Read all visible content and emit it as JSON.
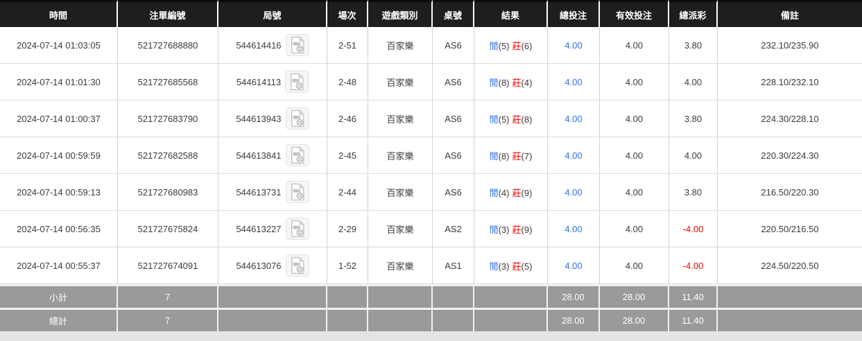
{
  "colors": {
    "link_blue": "#2d6fef",
    "negative_red": "#ee0000",
    "banker_red": "#e01322",
    "player_blue": "#2d6fef",
    "header_bg": "#1e1e1e",
    "footer_bg": "#9a9a9a"
  },
  "table": {
    "columns": [
      {
        "key": "time",
        "label": "時間"
      },
      {
        "key": "bet_no",
        "label": "注單編號"
      },
      {
        "key": "round_no",
        "label": "局號"
      },
      {
        "key": "session",
        "label": "場次"
      },
      {
        "key": "game",
        "label": "遊戲類別"
      },
      {
        "key": "table_id",
        "label": "桌號"
      },
      {
        "key": "result",
        "label": "結果"
      },
      {
        "key": "total",
        "label": "總投注"
      },
      {
        "key": "valid",
        "label": "有效投注"
      },
      {
        "key": "payout",
        "label": "總派彩"
      },
      {
        "key": "remark",
        "label": "備註"
      }
    ],
    "video_icon_name": "video-file-icon",
    "rows": [
      {
        "time": "2024-07-14 01:03:05",
        "bet_no": "521727688880",
        "round_no": "544614416",
        "session": "2-51",
        "game": "百家樂",
        "table_id": "AS6",
        "result": {
          "player_label": "閒",
          "player_score": "(5)",
          "banker_label": "莊",
          "banker_score": "(6)"
        },
        "total": "4.00",
        "valid": "4.00",
        "payout": "3.80",
        "remark": "232.10/235.90"
      },
      {
        "time": "2024-07-14 01:01:30",
        "bet_no": "521727685568",
        "round_no": "544614113",
        "session": "2-48",
        "game": "百家樂",
        "table_id": "AS6",
        "result": {
          "player_label": "閒",
          "player_score": "(8)",
          "banker_label": "莊",
          "banker_score": "(4)"
        },
        "total": "4.00",
        "valid": "4.00",
        "payout": "4.00",
        "remark": "228.10/232.10"
      },
      {
        "time": "2024-07-14 01:00:37",
        "bet_no": "521727683790",
        "round_no": "544613943",
        "session": "2-46",
        "game": "百家樂",
        "table_id": "AS6",
        "result": {
          "player_label": "閒",
          "player_score": "(5)",
          "banker_label": "莊",
          "banker_score": "(8)"
        },
        "total": "4.00",
        "valid": "4.00",
        "payout": "3.80",
        "remark": "224.30/228.10"
      },
      {
        "time": "2024-07-14 00:59:59",
        "bet_no": "521727682588",
        "round_no": "544613841",
        "session": "2-45",
        "game": "百家樂",
        "table_id": "AS6",
        "result": {
          "player_label": "閒",
          "player_score": "(8)",
          "banker_label": "莊",
          "banker_score": "(7)"
        },
        "total": "4.00",
        "valid": "4.00",
        "payout": "4.00",
        "remark": "220.30/224.30"
      },
      {
        "time": "2024-07-14 00:59:13",
        "bet_no": "521727680983",
        "round_no": "544613731",
        "session": "2-44",
        "game": "百家樂",
        "table_id": "AS6",
        "result": {
          "player_label": "閒",
          "player_score": "(4)",
          "banker_label": "莊",
          "banker_score": "(9)"
        },
        "total": "4.00",
        "valid": "4.00",
        "payout": "3.80",
        "remark": "216.50/220.30"
      },
      {
        "time": "2024-07-14 00:56:35",
        "bet_no": "521727675824",
        "round_no": "544613227",
        "session": "2-29",
        "game": "百家樂",
        "table_id": "AS2",
        "result": {
          "player_label": "閒",
          "player_score": "(3)",
          "banker_label": "莊",
          "banker_score": "(9)"
        },
        "total": "4.00",
        "valid": "4.00",
        "payout": "-4.00",
        "remark": "220.50/216.50"
      },
      {
        "time": "2024-07-14 00:55:37",
        "bet_no": "521727674091",
        "round_no": "544613076",
        "session": "1-52",
        "game": "百家樂",
        "table_id": "AS1",
        "result": {
          "player_label": "閒",
          "player_score": "(3)",
          "banker_label": "莊",
          "banker_score": "(5)"
        },
        "total": "4.00",
        "valid": "4.00",
        "payout": "-4.00",
        "remark": "224.50/220.50"
      }
    ],
    "footer": [
      {
        "key": "subtotal",
        "label": "小計",
        "count": "7",
        "total": "28.00",
        "valid": "28.00",
        "payout": "11.40"
      },
      {
        "key": "grand-total",
        "label": "總計",
        "count": "7",
        "total": "28.00",
        "valid": "28.00",
        "payout": "11.40"
      }
    ]
  }
}
